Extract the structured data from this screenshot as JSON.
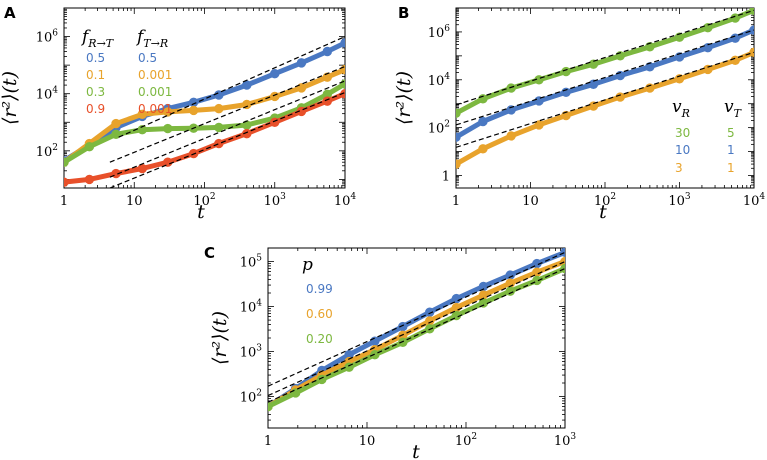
{
  "colors": {
    "blue": "#4a78c2",
    "orange": "#e8a32c",
    "green": "#7db840",
    "red": "#e8502a"
  },
  "chart_data": [
    {
      "id": "A",
      "type": "line",
      "title": "A",
      "xlabel": "t",
      "ylabel": "⟨r²⟩(t)",
      "xscale": "log",
      "yscale": "log",
      "xlim": [
        1,
        10000
      ],
      "ylim": [
        5,
        10000000
      ],
      "xticks": [
        {
          "value": 1,
          "base": "1",
          "exp": ""
        },
        {
          "value": 10,
          "base": "10",
          "exp": ""
        },
        {
          "value": 100,
          "base": "10",
          "exp": "2"
        },
        {
          "value": 1000,
          "base": "10",
          "exp": "3"
        },
        {
          "value": 10000,
          "base": "10",
          "exp": "4"
        }
      ],
      "yticks": [
        {
          "value": 100,
          "base": "10",
          "exp": "2"
        },
        {
          "value": 10000,
          "base": "10",
          "exp": "4"
        },
        {
          "value": 1000000,
          "base": "10",
          "exp": "6"
        }
      ],
      "legend": {
        "headers": [
          "f_{R→T}",
          "f_{T→R}"
        ],
        "rows": [
          {
            "color": "blue",
            "cols": [
              "0.5",
              "0.5"
            ]
          },
          {
            "color": "orange",
            "cols": [
              "0.1",
              "0.001"
            ]
          },
          {
            "color": "green",
            "cols": [
              "0.3",
              "0.001"
            ]
          },
          {
            "color": "red",
            "cols": [
              "0.9",
              "0.001"
            ]
          }
        ]
      },
      "series": [
        {
          "name": "blue",
          "color": "blue",
          "x": [
            1,
            2.3,
            5.5,
            13,
            30,
            70,
            160,
            400,
            1000,
            2400,
            5600,
            10000
          ],
          "y": [
            45,
            160,
            650,
            1600,
            3000,
            5000,
            9000,
            20000,
            50000,
            120000,
            300000,
            600000
          ]
        },
        {
          "name": "orange",
          "color": "orange",
          "x": [
            1,
            2.3,
            5.5,
            13,
            30,
            70,
            160,
            400,
            1000,
            2400,
            5600,
            10000
          ],
          "y": [
            40,
            180,
            900,
            1900,
            2300,
            2600,
            3000,
            4200,
            8000,
            16000,
            38000,
            70000
          ]
        },
        {
          "name": "green",
          "color": "green",
          "x": [
            1,
            2.3,
            5.5,
            13,
            30,
            70,
            160,
            400,
            1000,
            2400,
            5600,
            10000
          ],
          "y": [
            40,
            140,
            380,
            550,
            600,
            620,
            660,
            800,
            1400,
            3200,
            9500,
            22000
          ]
        },
        {
          "name": "red",
          "color": "red",
          "x": [
            1,
            2.3,
            5.5,
            13,
            30,
            70,
            160,
            400,
            1000,
            2400,
            5600,
            10000
          ],
          "y": [
            8,
            10,
            16,
            24,
            40,
            80,
            180,
            400,
            1000,
            2400,
            5500,
            10000
          ]
        }
      ],
      "guides": [
        {
          "x": [
            6,
            10000
          ],
          "y": [
            300,
            1000000
          ]
        },
        {
          "x": [
            4.5,
            10000
          ],
          "y": [
            40,
            90000
          ]
        },
        {
          "x": [
            4.5,
            10000
          ],
          "y": [
            12,
            28000
          ]
        },
        {
          "x": [
            4.5,
            10000
          ],
          "y": [
            5,
            11000
          ]
        }
      ]
    },
    {
      "id": "B",
      "type": "line",
      "title": "B",
      "xlabel": "t",
      "ylabel": "⟨r²⟩(t)",
      "xscale": "log",
      "yscale": "log",
      "xlim": [
        1,
        10000
      ],
      "ylim": [
        0.3,
        10000000
      ],
      "xticks": [
        {
          "value": 1,
          "base": "1",
          "exp": ""
        },
        {
          "value": 10,
          "base": "10",
          "exp": ""
        },
        {
          "value": 100,
          "base": "10",
          "exp": "2"
        },
        {
          "value": 1000,
          "base": "10",
          "exp": "3"
        },
        {
          "value": 10000,
          "base": "10",
          "exp": "4"
        }
      ],
      "yticks": [
        {
          "value": 1,
          "base": "1",
          "exp": ""
        },
        {
          "value": 100,
          "base": "10",
          "exp": "2"
        },
        {
          "value": 10000,
          "base": "10",
          "exp": "4"
        },
        {
          "value": 1000000,
          "base": "10",
          "exp": "6"
        }
      ],
      "legend": {
        "headers": [
          "v_R",
          "v_T"
        ],
        "rows": [
          {
            "color": "green",
            "cols": [
              "30",
              "5"
            ]
          },
          {
            "color": "blue",
            "cols": [
              "10",
              "1"
            ]
          },
          {
            "color": "orange",
            "cols": [
              "3",
              "1"
            ]
          }
        ]
      },
      "series": [
        {
          "name": "green",
          "color": "green",
          "x": [
            1,
            2.3,
            5.5,
            13,
            30,
            70,
            160,
            400,
            1000,
            2400,
            5600,
            10000
          ],
          "y": [
            400,
            1600,
            4500,
            10000,
            22000,
            45000,
            100000,
            240000,
            600000,
            1500000,
            3800000,
            8000000
          ]
        },
        {
          "name": "blue",
          "color": "blue",
          "x": [
            1,
            2.3,
            5.5,
            13,
            30,
            70,
            160,
            400,
            1000,
            2400,
            5600,
            10000
          ],
          "y": [
            40,
            180,
            550,
            1300,
            3000,
            6500,
            15000,
            35000,
            90000,
            220000,
            550000,
            1200000
          ]
        },
        {
          "name": "orange",
          "color": "orange",
          "x": [
            1,
            2.3,
            5.5,
            13,
            30,
            70,
            160,
            400,
            1000,
            2400,
            5600,
            10000
          ],
          "y": [
            3,
            13,
            45,
            130,
            320,
            800,
            1900,
            4500,
            11000,
            27000,
            65000,
            140000
          ]
        }
      ],
      "guides": [
        {
          "x": [
            1,
            10000
          ],
          "y": [
            900,
            8000000
          ]
        },
        {
          "x": [
            1,
            10000
          ],
          "y": [
            130,
            1200000
          ]
        },
        {
          "x": [
            1,
            10000
          ],
          "y": [
            15,
            140000
          ]
        }
      ]
    },
    {
      "id": "C",
      "type": "line",
      "title": "C",
      "xlabel": "t",
      "ylabel": "⟨r²⟩(t)",
      "xscale": "log",
      "yscale": "log",
      "xlim": [
        1,
        1000
      ],
      "ylim": [
        20,
        200000
      ],
      "xticks": [
        {
          "value": 1,
          "base": "1",
          "exp": ""
        },
        {
          "value": 10,
          "base": "10",
          "exp": ""
        },
        {
          "value": 100,
          "base": "10",
          "exp": "2"
        },
        {
          "value": 1000,
          "base": "10",
          "exp": "3"
        }
      ],
      "yticks": [
        {
          "value": 100,
          "base": "10",
          "exp": "2"
        },
        {
          "value": 1000,
          "base": "10",
          "exp": "3"
        },
        {
          "value": 10000,
          "base": "10",
          "exp": "4"
        },
        {
          "value": 100000,
          "base": "10",
          "exp": "5"
        }
      ],
      "legend": {
        "headers": [
          "p"
        ],
        "rows": [
          {
            "color": "blue",
            "cols": [
              "0.99"
            ]
          },
          {
            "color": "orange",
            "cols": [
              "0.60"
            ]
          },
          {
            "color": "green",
            "cols": [
              "0.20"
            ]
          }
        ]
      },
      "series": [
        {
          "name": "blue",
          "color": "blue",
          "x": [
            1,
            1.9,
            3.5,
            6.6,
            12,
            23,
            43,
            80,
            150,
            280,
            520,
            1000
          ],
          "y": [
            60,
            150,
            380,
            850,
            1700,
            3600,
            7500,
            15000,
            28000,
            50000,
            90000,
            160000
          ]
        },
        {
          "name": "orange",
          "color": "orange",
          "x": [
            1,
            1.9,
            3.5,
            6.6,
            12,
            23,
            43,
            80,
            150,
            280,
            520,
            1000
          ],
          "y": [
            60,
            140,
            300,
            600,
            1100,
            2300,
            4800,
            9500,
            18000,
            33000,
            58000,
            100000
          ]
        },
        {
          "name": "green",
          "color": "green",
          "x": [
            1,
            1.9,
            3.5,
            6.6,
            12,
            23,
            43,
            80,
            150,
            280,
            520,
            1000
          ],
          "y": [
            60,
            120,
            240,
            450,
            850,
            1600,
            3200,
            6300,
            12000,
            22000,
            38000,
            70000
          ]
        }
      ],
      "guides": [
        {
          "x": [
            1,
            1000
          ],
          "y": [
            170,
            160000
          ]
        },
        {
          "x": [
            1,
            1000
          ],
          "y": [
            105,
            100000
          ]
        },
        {
          "x": [
            1,
            1000
          ],
          "y": [
            75,
            70000
          ]
        }
      ]
    }
  ]
}
